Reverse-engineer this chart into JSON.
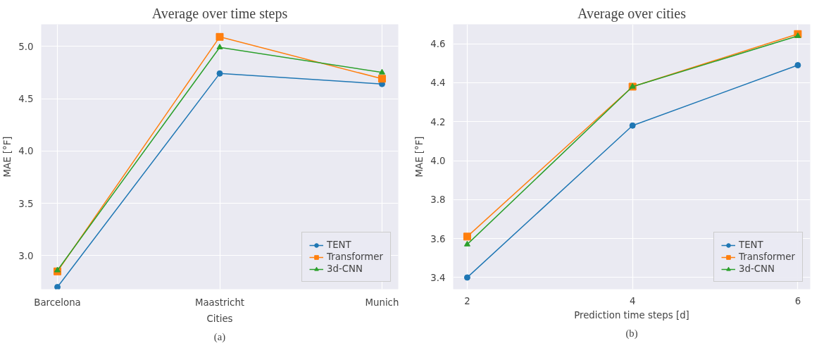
{
  "chart_data": [
    {
      "type": "line",
      "title": "Average over time steps",
      "xlabel": "Cities",
      "ylabel": "MAE [°F]",
      "categories": [
        "Barcelona",
        "Maastricht",
        "Munich"
      ],
      "ylim": [
        2.68,
        5.21
      ],
      "yticks": [
        {
          "value": 3.0,
          "label": "3.0"
        },
        {
          "value": 3.5,
          "label": "3.5"
        },
        {
          "value": 4.0,
          "label": "4.0"
        },
        {
          "value": 4.5,
          "label": "4.5"
        },
        {
          "value": 5.0,
          "label": "5.0"
        }
      ],
      "grid": true,
      "legend": "bottom right",
      "annotations": [
        "(a)"
      ],
      "series": [
        {
          "name": "TENT",
          "color": "#1f77b4",
          "marker": "circle",
          "values": [
            2.7,
            4.74,
            4.64
          ]
        },
        {
          "name": "Transformer",
          "color": "#ff7f0e",
          "marker": "square",
          "values": [
            2.85,
            5.09,
            4.69
          ]
        },
        {
          "name": "3d-CNN",
          "color": "#2ca02c",
          "marker": "triangle",
          "values": [
            2.86,
            4.99,
            4.75
          ]
        }
      ]
    },
    {
      "type": "line",
      "title": "Average over cities",
      "xlabel": "Prediction time steps [d]",
      "ylabel": "MAE [°F]",
      "x": [
        2,
        4,
        6
      ],
      "xlim": [
        1.83,
        6.15
      ],
      "xticks": [
        2,
        4,
        6
      ],
      "ylim": [
        3.34,
        4.7
      ],
      "yticks": [
        {
          "value": 3.4,
          "label": "3.4"
        },
        {
          "value": 3.6,
          "label": "3.6"
        },
        {
          "value": 3.8,
          "label": "3.8"
        },
        {
          "value": 4.0,
          "label": "4.0"
        },
        {
          "value": 4.2,
          "label": "4.2"
        },
        {
          "value": 4.4,
          "label": "4.4"
        },
        {
          "value": 4.6,
          "label": "4.6"
        }
      ],
      "grid": true,
      "legend": "bottom right",
      "annotations": [
        "(b)"
      ],
      "series": [
        {
          "name": "TENT",
          "color": "#1f77b4",
          "marker": "circle",
          "values": [
            3.4,
            4.18,
            4.49
          ]
        },
        {
          "name": "Transformer",
          "color": "#ff7f0e",
          "marker": "square",
          "values": [
            3.61,
            4.38,
            4.65
          ]
        },
        {
          "name": "3d-CNN",
          "color": "#2ca02c",
          "marker": "triangle",
          "values": [
            3.57,
            4.38,
            4.64
          ]
        }
      ]
    }
  ]
}
